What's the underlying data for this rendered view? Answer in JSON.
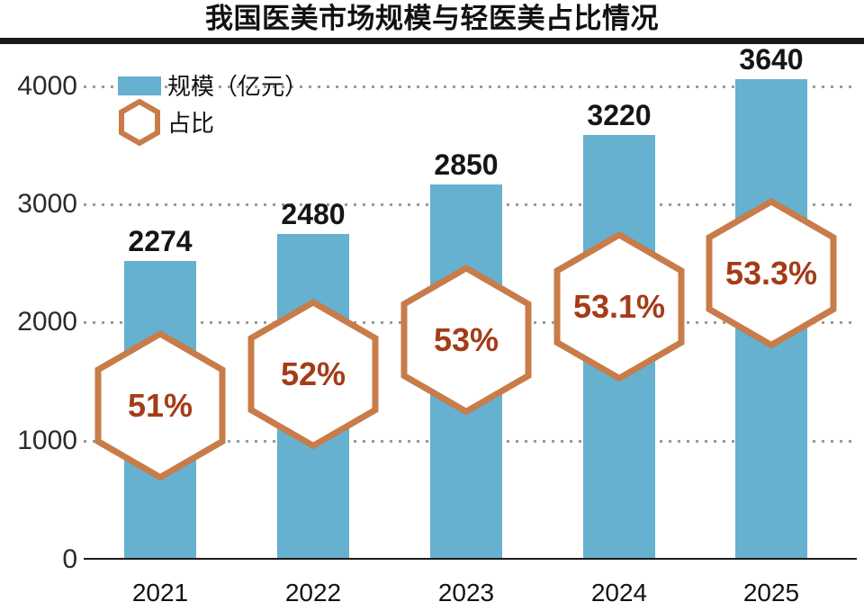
{
  "title": "我国医美市场规模与轻医美占比情况",
  "legend": [
    {
      "label": "规模（亿元）",
      "swatch": "bar-swatch"
    },
    {
      "label": "占比",
      "swatch": "hexagon-swatch"
    }
  ],
  "colors": {
    "bar_fill": "#66b0d0",
    "hexagon_stroke": "#c87c49",
    "hexagon_fill": "#ffffff",
    "percent_text": "#a43c18",
    "value_text": "#151515",
    "axis_text": "#2a2a2a",
    "grid_dots": "#9a9a9a",
    "title_rule": "#1a1a1a"
  },
  "chart_data": {
    "type": "bar",
    "title": "我国医美市场规模与轻医美占比情况",
    "categories": [
      "2021",
      "2022",
      "2023",
      "2024",
      "2025"
    ],
    "series": [
      {
        "name": "规模（亿元）",
        "type": "bar",
        "values": [
          2274,
          2480,
          2850,
          3220,
          3640
        ]
      },
      {
        "name": "占比",
        "type": "hexagon-marker",
        "values_percent": [
          "51%",
          "52%",
          "53%",
          "53.1%",
          "53.3%"
        ]
      }
    ],
    "xlabel": "",
    "ylabel": "",
    "ylim": [
      0,
      4000
    ],
    "yticks": [
      0,
      1000,
      2000,
      3000,
      4000
    ],
    "grid": "horizontal-dotted",
    "legend_position": "top-left"
  }
}
